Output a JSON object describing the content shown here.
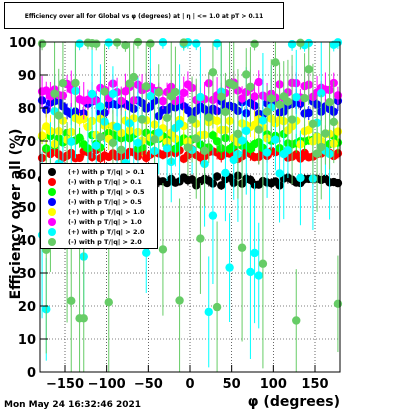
{
  "title": "Efficiency over all for Global vs φ (degrees) at | η | <= 1.0 at pT > 0.11",
  "footer_date": "Mon May 24 16:32:46 2021",
  "chart_data": {
    "type": "scatter",
    "xlabel": "φ (degrees)",
    "ylabel": "Efficiency over all (%)",
    "xlim": [
      -180,
      180
    ],
    "ylim": [
      0,
      100
    ],
    "x_ticks": [
      -150,
      -100,
      -50,
      0,
      50,
      100,
      150
    ],
    "x_tick_labels": [
      "−150",
      "−100",
      "−50",
      "0",
      "50",
      "100",
      "150"
    ],
    "y_ticks": [
      0,
      10,
      20,
      30,
      40,
      50,
      60,
      70,
      80,
      90,
      100
    ],
    "y_tick_labels": [
      "0",
      "10",
      "20",
      "30",
      "40",
      "50",
      "60",
      "70",
      "80",
      "90",
      "100"
    ],
    "grid": true,
    "legend_position": "left-center",
    "x_bins": [
      -177.5,
      -172.5,
      -167.5,
      -162.5,
      -157.5,
      -152.5,
      -147.5,
      -142.5,
      -137.5,
      -132.5,
      -127.5,
      -122.5,
      -117.5,
      -112.5,
      -107.5,
      -102.5,
      -97.5,
      -92.5,
      -87.5,
      -82.5,
      -77.5,
      -72.5,
      -67.5,
      -62.5,
      -57.5,
      -52.5,
      -47.5,
      -42.5,
      -37.5,
      -32.5,
      -27.5,
      -22.5,
      -17.5,
      -12.5,
      -7.5,
      -2.5,
      2.5,
      7.5,
      12.5,
      17.5,
      22.5,
      27.5,
      32.5,
      37.5,
      42.5,
      47.5,
      52.5,
      57.5,
      62.5,
      67.5,
      72.5,
      77.5,
      82.5,
      87.5,
      92.5,
      97.5,
      102.5,
      107.5,
      112.5,
      117.5,
      122.5,
      127.5,
      132.5,
      137.5,
      142.5,
      147.5,
      152.5,
      157.5,
      162.5,
      167.5,
      172.5,
      177.5
    ],
    "series": [
      {
        "name": "(+) with p T/|q| > 0.1",
        "color": "#000000",
        "mean": 58.0,
        "spread": 1.5,
        "err": 1.2
      },
      {
        "name": "(-) with p T/|q| > 0.1",
        "color": "#ff0000",
        "mean": 66.0,
        "spread": 1.5,
        "err": 1.5
      },
      {
        "name": "(+) with p T/|q| > 0.5",
        "color": "#00ff00",
        "mean": 70.0,
        "spread": 2.5,
        "err": 2.5
      },
      {
        "name": "(-) with p T/|q| > 0.5",
        "color": "#0000ff",
        "mean": 80.0,
        "spread": 2.5,
        "err": 2.5
      },
      {
        "name": "(+) with p T/|q| > 1.0",
        "color": "#ffff00",
        "mean": 73.0,
        "spread": 4.0,
        "err": 4.0
      },
      {
        "name": "(-) with p T/|q| > 1.0",
        "color": "#ff00ff",
        "mean": 85.0,
        "spread": 3.0,
        "err": 4.0
      },
      {
        "name": "(+) with p T/|q| > 2.0",
        "color": "#00ffff",
        "mean": 72.0,
        "spread": 14.0,
        "err": 14.0
      },
      {
        "name": "(-) with p T/|q| > 2.0",
        "color": "#66cc66",
        "mean": 80.0,
        "spread": 14.0,
        "err": 14.0
      }
    ]
  }
}
